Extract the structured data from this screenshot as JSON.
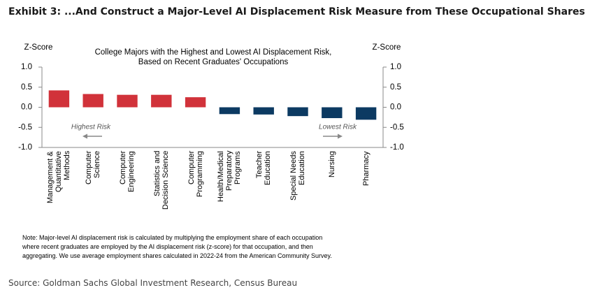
{
  "header": {
    "title": "Exhibit 3: ...And Construct a Major-Level AI Displacement Risk Measure from These Occupational Shares"
  },
  "chart_data": {
    "type": "bar",
    "title": "College Majors with the Highest and Lowest AI Displacement Risk,\nBased on Recent Graduates' Occupations",
    "y_label": "Z-Score",
    "y2_label": "Z-Score",
    "categories": [
      "Management &\nQuantitative\nMethods",
      "Computer\nScience",
      "Computer\nEngineering",
      "Statistics and\nDecision Science",
      "Computer\nProgramming",
      "Health/Medical\nPreparatory\nPrograms",
      "Teacher\nEducation",
      "Special Needs\nEducation",
      "Nursing",
      "Pharmacy"
    ],
    "values": [
      0.42,
      0.33,
      0.31,
      0.31,
      0.25,
      -0.17,
      -0.18,
      -0.22,
      -0.27,
      -0.31
    ],
    "colors": [
      "#d1323a",
      "#d1323a",
      "#d1323a",
      "#d1323a",
      "#d1323a",
      "#0c3a62",
      "#0c3a62",
      "#0c3a62",
      "#0c3a62",
      "#0c3a62"
    ],
    "ylim": [
      -1,
      1
    ],
    "yticks": [
      {
        "value": -1,
        "label": "-1.0"
      },
      {
        "value": -0.5,
        "label": "-0.5"
      },
      {
        "value": 0,
        "label": "0.0"
      },
      {
        "value": 0.5,
        "label": "0.5"
      },
      {
        "value": 1,
        "label": "1.0"
      }
    ],
    "y2lim": [
      -1,
      1
    ],
    "y2ticks": [
      {
        "value": -1,
        "label": "-1.0"
      },
      {
        "value": -0.5,
        "label": "-0.5"
      },
      {
        "value": 0,
        "label": "0.0"
      },
      {
        "value": 0.5,
        "label": "0.5"
      },
      {
        "value": 1,
        "label": "1.0"
      }
    ],
    "annotations": [
      "Highest Risk",
      "Lowest Risk"
    ],
    "note": "Note: Major-level AI displacement risk is calculated by multiplying the employment share of each occupation\nwhere recent graduates are employed by the AI displacement risk (z-score) for that occupation, and then\naggregating. We use average employment shares calculated in 2022-24 from the American Community Survey."
  },
  "footer": {
    "source": "Source: Goldman Sachs Global Investment Research, Census Bureau"
  }
}
